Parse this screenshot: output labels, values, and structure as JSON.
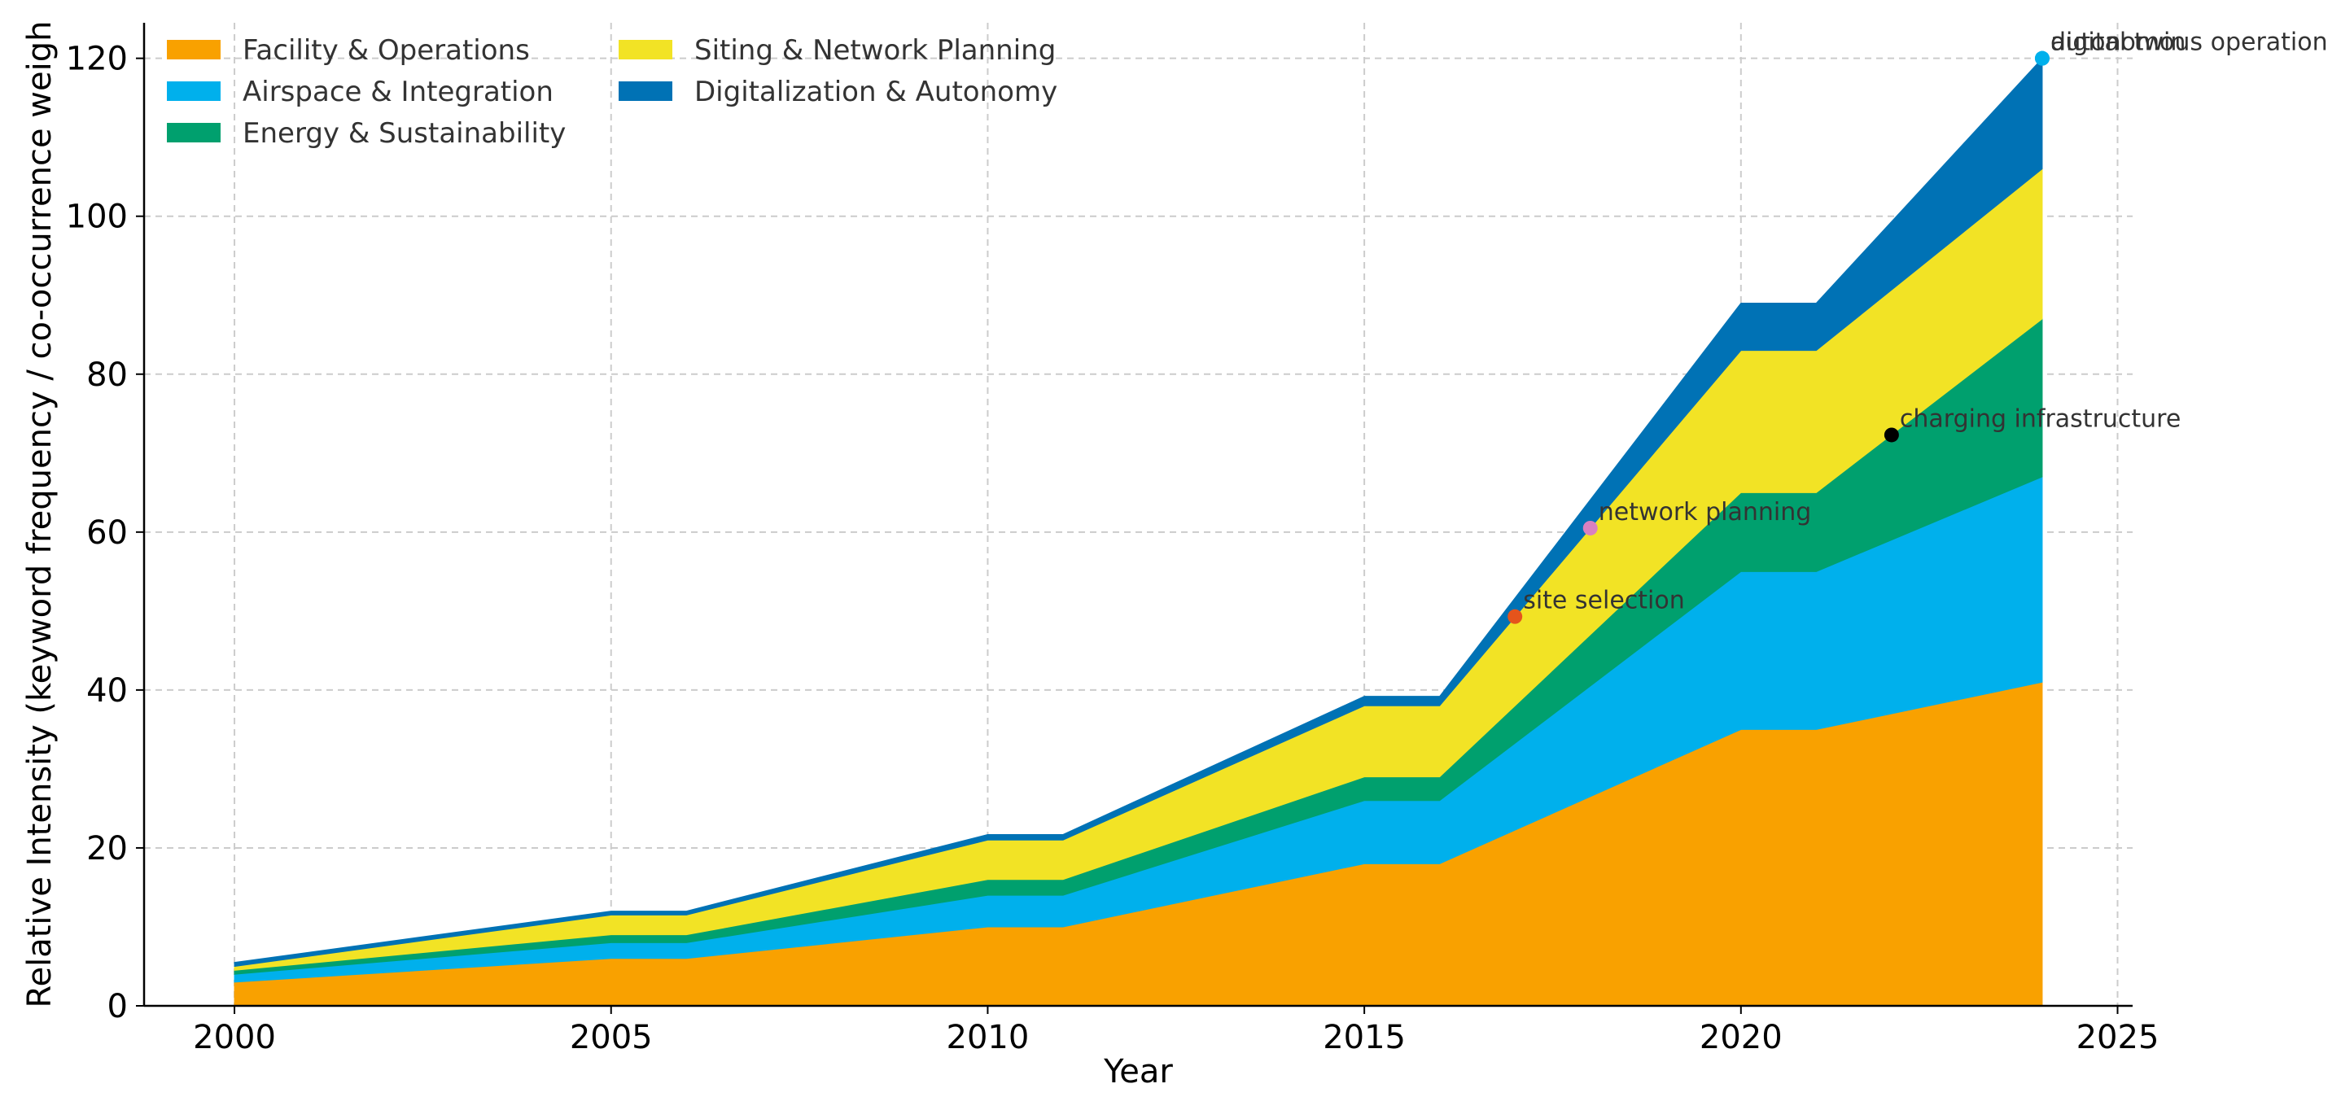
{
  "chart_data": {
    "type": "area",
    "stacked": true,
    "title": "",
    "xlabel": "Year",
    "ylabel": "Relative Intensity (keyword frequency / co-occurrence weigh",
    "xlim": [
      1998.8,
      2025.2
    ],
    "ylim": [
      0,
      124.5
    ],
    "xticks": [
      2000,
      2005,
      2010,
      2015,
      2020,
      2025
    ],
    "yticks": [
      0,
      20,
      40,
      60,
      80,
      100,
      120
    ],
    "grid": true,
    "legend_position": "top-left",
    "x": [
      2000,
      2005,
      2006,
      2010,
      2011,
      2015,
      2016,
      2020,
      2021,
      2024
    ],
    "series": [
      {
        "name": "Facility & Operations",
        "color": "#f9a100",
        "values": [
          3,
          6,
          6,
          10,
          10,
          18,
          18,
          35,
          35,
          41
        ]
      },
      {
        "name": "Airspace & Integration",
        "color": "#00b0ec",
        "values": [
          1,
          2,
          2,
          4,
          4,
          8,
          8,
          20,
          20,
          26
        ]
      },
      {
        "name": "Energy & Sustainability",
        "color": "#00a06e",
        "values": [
          0.5,
          1,
          1,
          2,
          2,
          3,
          3,
          10,
          10,
          20
        ]
      },
      {
        "name": "Siting & Network Planning",
        "color": "#f2e325",
        "values": [
          0.5,
          2.5,
          2.5,
          5,
          5,
          9,
          9,
          18,
          18,
          19
        ]
      },
      {
        "name": "Digitalization & Autonomy",
        "color": "#0072b5",
        "values": [
          0.5,
          0.5,
          0.5,
          0.7,
          0.7,
          1.2,
          1.2,
          6,
          6,
          14
        ]
      }
    ],
    "annotations": [
      {
        "text": "site selection",
        "x": 2017,
        "y": 49.3,
        "color": "#e5541c"
      },
      {
        "text": "network planning",
        "x": 2018,
        "y": 60.5,
        "color": "#d980c0"
      },
      {
        "text": "charging infrastructure",
        "x": 2022,
        "y": 72.3,
        "color": "#000000"
      },
      {
        "text": "digital twin",
        "x": 2024,
        "y": 120,
        "color": "#00b0ec"
      },
      {
        "text": "autonomous operation",
        "x": 2024,
        "y": 120,
        "color": "#00b0ec"
      }
    ]
  }
}
